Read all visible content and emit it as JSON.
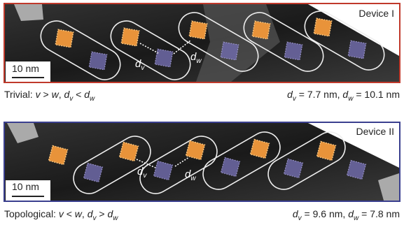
{
  "panels": [
    {
      "device": "Device I",
      "scale_bar": "10 nm",
      "label_dv": [
        "d",
        "v"
      ],
      "label_dw": [
        "d",
        "w"
      ],
      "caption_left": [
        "Trivial: ",
        "v",
        " > ",
        "w",
        ", ",
        "d",
        "v",
        " < ",
        "d",
        "w"
      ],
      "caption_right": [
        "d",
        "v",
        " = 7.7 nm, ",
        "d",
        "w",
        " = 10.1 nm"
      ]
    },
    {
      "device": "Device II",
      "scale_bar": "10 nm",
      "label_dv": [
        "d",
        "v"
      ],
      "label_dw": [
        "d",
        "w"
      ],
      "caption_left": [
        "Topological: ",
        "v",
        " < ",
        "w",
        ", ",
        "d",
        "v",
        " > ",
        "d",
        "w"
      ],
      "caption_right": [
        "d",
        "v",
        " = 9.6 nm, ",
        "d",
        "w",
        " = 7.8 nm"
      ]
    }
  ]
}
